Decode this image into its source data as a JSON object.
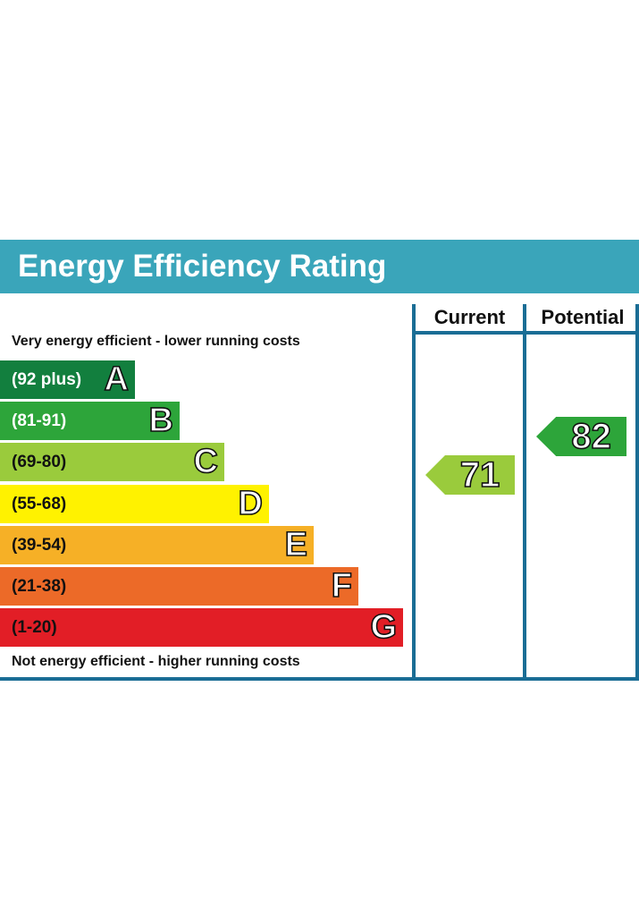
{
  "header": {
    "title": "Energy Efficiency Rating"
  },
  "columns": {
    "current": "Current",
    "potential": "Potential"
  },
  "captions": {
    "top": "Very energy efficient - lower running costs",
    "bottom": "Not energy efficient - higher running costs"
  },
  "chart_data": {
    "type": "bar",
    "title": "Energy Efficiency Rating",
    "categories": [
      "A",
      "B",
      "C",
      "D",
      "E",
      "F",
      "G"
    ],
    "series": [
      {
        "values": [
          {
            "letter": "A",
            "range": "(92 plus)",
            "color": "#127f3e",
            "text_color": "#ffffff"
          },
          {
            "letter": "B",
            "range": "(81-91)",
            "color": "#2da53a",
            "text_color": "#ffffff"
          },
          {
            "letter": "C",
            "range": "(69-80)",
            "color": "#9acb3c",
            "text_color": "#111111"
          },
          {
            "letter": "D",
            "range": "(55-68)",
            "color": "#fff200",
            "text_color": "#111111"
          },
          {
            "letter": "E",
            "range": "(39-54)",
            "color": "#f6b026",
            "text_color": "#111111"
          },
          {
            "letter": "F",
            "range": "(21-38)",
            "color": "#ec6a28",
            "text_color": "#111111"
          },
          {
            "letter": "G",
            "range": "(1-20)",
            "color": "#e21e26",
            "text_color": "#111111"
          }
        ]
      }
    ],
    "current": {
      "value": 71,
      "band": "C",
      "color": "#9acb3c"
    },
    "potential": {
      "value": 82,
      "band": "B",
      "color": "#2da53a"
    }
  }
}
